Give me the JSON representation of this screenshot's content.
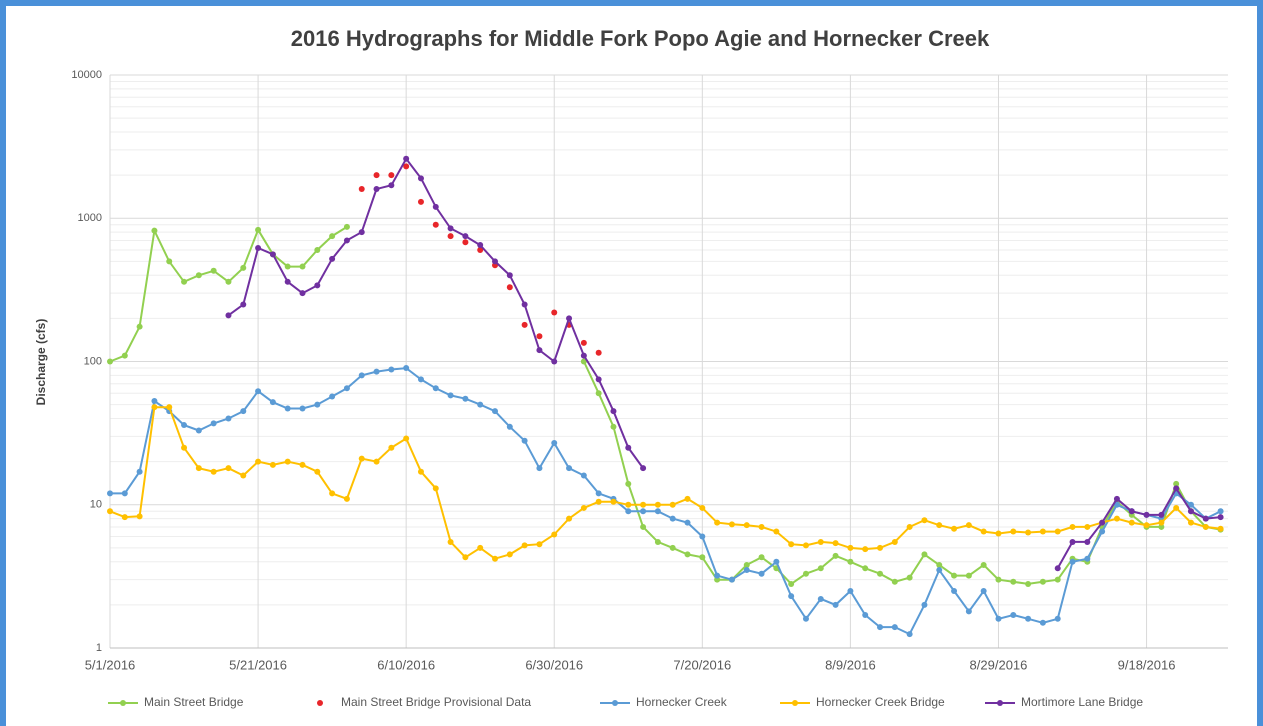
{
  "chart_data": {
    "type": "line",
    "title": "2016 Hydrographs for Middle Fork Popo Agie and Hornecker Creek",
    "y_label": "Discharge (cfs)",
    "log_scale_y": true,
    "grid": true,
    "minor_grid": true,
    "legend": "bottom",
    "xlim": [
      "5/1/2016",
      "9/29/2016"
    ],
    "xticks": [
      "5/1/2016",
      "5/21/2016",
      "6/10/2016",
      "6/30/2016",
      "7/20/2016",
      "8/9/2016",
      "8/29/2016",
      "9/18/2016"
    ],
    "ylim": [
      1,
      10000
    ],
    "yticks": [
      1,
      10,
      100,
      1000,
      10000
    ],
    "x": [
      "5/1/2016",
      "5/3/2016",
      "5/5/2016",
      "5/7/2016",
      "5/9/2016",
      "5/11/2016",
      "5/13/2016",
      "5/15/2016",
      "5/17/2016",
      "5/19/2016",
      "5/21/2016",
      "5/23/2016",
      "5/25/2016",
      "5/27/2016",
      "5/29/2016",
      "5/31/2016",
      "6/2/2016",
      "6/4/2016",
      "6/6/2016",
      "6/8/2016",
      "6/10/2016",
      "6/12/2016",
      "6/14/2016",
      "6/16/2016",
      "6/18/2016",
      "6/20/2016",
      "6/22/2016",
      "6/24/2016",
      "6/26/2016",
      "6/28/2016",
      "6/30/2016",
      "7/2/2016",
      "7/4/2016",
      "7/6/2016",
      "7/8/2016",
      "7/10/2016",
      "7/12/2016",
      "7/14/2016",
      "7/16/2016",
      "7/18/2016",
      "7/20/2016",
      "7/22/2016",
      "7/24/2016",
      "7/26/2016",
      "7/28/2016",
      "7/30/2016",
      "8/1/2016",
      "8/3/2016",
      "8/5/2016",
      "8/7/2016",
      "8/9/2016",
      "8/11/2016",
      "8/13/2016",
      "8/15/2016",
      "8/17/2016",
      "8/19/2016",
      "8/21/2016",
      "8/23/2016",
      "8/25/2016",
      "8/27/2016",
      "8/29/2016",
      "8/31/2016",
      "9/2/2016",
      "9/4/2016",
      "9/6/2016",
      "9/8/2016",
      "9/10/2016",
      "9/12/2016",
      "9/14/2016",
      "9/16/2016",
      "9/18/2016",
      "9/20/2016",
      "9/22/2016",
      "9/24/2016",
      "9/26/2016",
      "9/28/2016"
    ],
    "series": [
      {
        "name": "Main Street Bridge",
        "color": "#92d050",
        "values": [
          100,
          110,
          175,
          820,
          500,
          360,
          400,
          430,
          360,
          450,
          830,
          560,
          460,
          460,
          600,
          750,
          870,
          null,
          null,
          null,
          null,
          null,
          null,
          null,
          null,
          null,
          null,
          null,
          null,
          null,
          null,
          null,
          100,
          60,
          35,
          14,
          7,
          5.5,
          5,
          4.5,
          4.3,
          3.0,
          3.0,
          3.8,
          4.3,
          3.6,
          2.8,
          3.3,
          3.6,
          4.4,
          4.0,
          3.6,
          3.3,
          2.9,
          3.1,
          4.5,
          3.8,
          3.2,
          3.2,
          3.8,
          3.0,
          2.9,
          2.8,
          2.9,
          3.0,
          4.2,
          4.0,
          7,
          10.5,
          8.5,
          7.0,
          7.0,
          14,
          9,
          7,
          6.7
        ]
      },
      {
        "name": "Main Street Bridge Provisional Data",
        "color": "#e8262a",
        "line": false,
        "values": [
          null,
          null,
          null,
          null,
          null,
          null,
          null,
          null,
          null,
          null,
          null,
          null,
          null,
          null,
          null,
          null,
          null,
          1600,
          2000,
          2000,
          2300,
          1300,
          900,
          750,
          680,
          600,
          470,
          330,
          180,
          150,
          220,
          180,
          135,
          115,
          null,
          null,
          null,
          null,
          null,
          null,
          null,
          null,
          null,
          null,
          null,
          null,
          null,
          null,
          null,
          null,
          null,
          null,
          null,
          null,
          null,
          null,
          null,
          null,
          null,
          null,
          null,
          null,
          null,
          null,
          null,
          null,
          null,
          null,
          null,
          null,
          null,
          null,
          null,
          null,
          null,
          null
        ]
      },
      {
        "name": "Hornecker Creek",
        "color": "#5b9bd5",
        "values": [
          12,
          12,
          17,
          53,
          45,
          36,
          33,
          37,
          40,
          45,
          62,
          52,
          47,
          47,
          50,
          57,
          65,
          80,
          85,
          88,
          90,
          75,
          65,
          58,
          55,
          50,
          45,
          35,
          28,
          18,
          27,
          18,
          16,
          12,
          11,
          9,
          9,
          9,
          8,
          7.5,
          6,
          3.2,
          3.0,
          3.5,
          3.3,
          4.0,
          2.3,
          1.6,
          2.2,
          2.0,
          2.5,
          1.7,
          1.4,
          1.4,
          1.25,
          2.0,
          3.5,
          2.5,
          1.8,
          2.5,
          1.6,
          1.7,
          1.6,
          1.5,
          1.6,
          4.0,
          4.2,
          6.5,
          10,
          9,
          8.5,
          8,
          12,
          10,
          8,
          9
        ]
      },
      {
        "name": "Hornecker Creek Bridge",
        "color": "#ffc000",
        "values": [
          9,
          8.2,
          8.3,
          48,
          48,
          25,
          18,
          17,
          18,
          16,
          20,
          19,
          20,
          19,
          17,
          12,
          11,
          21,
          20,
          25,
          29,
          17,
          13,
          5.5,
          4.3,
          5.0,
          4.2,
          4.5,
          5.2,
          5.3,
          6.2,
          8.0,
          9.5,
          10.5,
          10.5,
          10,
          10,
          10,
          10,
          11,
          9.5,
          7.5,
          7.3,
          7.2,
          7.0,
          6.5,
          5.3,
          5.2,
          5.5,
          5.4,
          5.0,
          4.9,
          5.0,
          5.5,
          7,
          7.8,
          7.2,
          6.8,
          7.2,
          6.5,
          6.3,
          6.5,
          6.4,
          6.5,
          6.5,
          7,
          7,
          7.5,
          8,
          7.5,
          7.2,
          7.5,
          9.5,
          7.5,
          7.0,
          6.8
        ]
      },
      {
        "name": "Mortimore Lane Bridge",
        "color": "#7030a0",
        "values": [
          null,
          null,
          null,
          null,
          null,
          null,
          null,
          null,
          210,
          250,
          620,
          560,
          360,
          300,
          340,
          520,
          700,
          800,
          1600,
          1700,
          2600,
          1900,
          1200,
          850,
          750,
          650,
          500,
          400,
          250,
          120,
          100,
          200,
          110,
          75,
          45,
          25,
          18,
          null,
          null,
          null,
          null,
          null,
          null,
          null,
          null,
          null,
          null,
          null,
          null,
          null,
          null,
          null,
          null,
          null,
          null,
          null,
          null,
          null,
          null,
          null,
          null,
          null,
          null,
          null,
          3.6,
          5.5,
          5.5,
          7.5,
          11,
          9,
          8.5,
          8.5,
          13,
          9,
          8,
          8.2
        ]
      }
    ]
  }
}
